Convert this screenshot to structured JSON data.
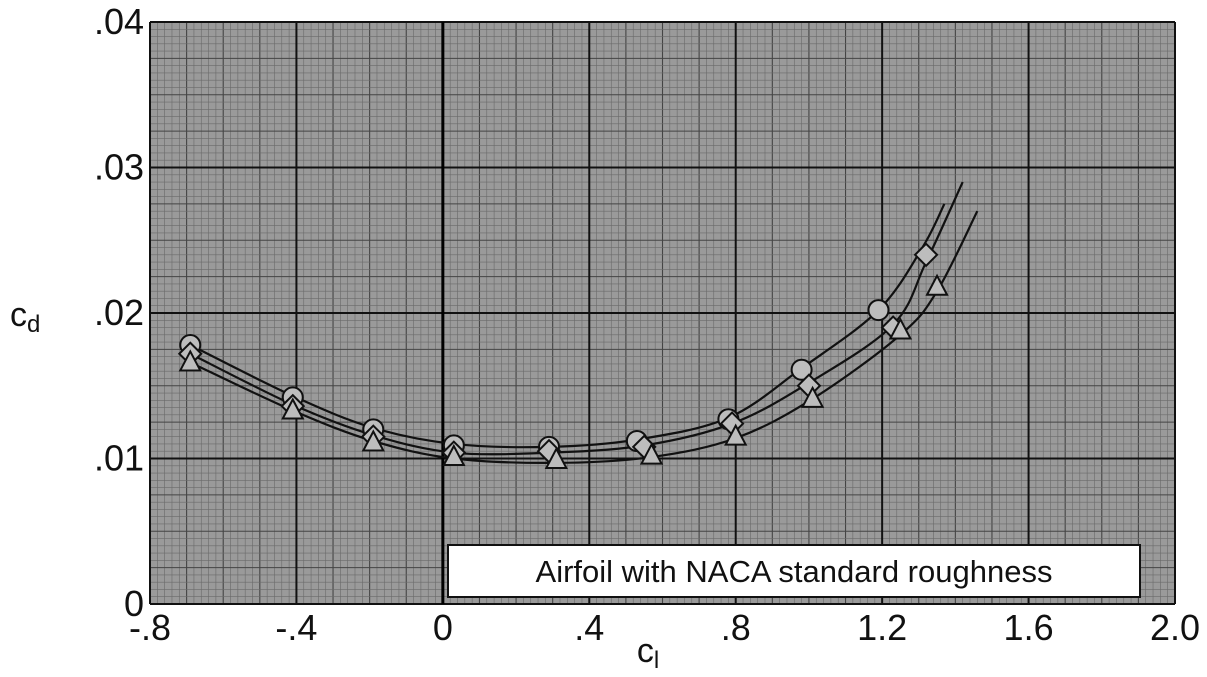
{
  "chart_data": {
    "type": "line",
    "title": "",
    "xlabel": "c",
    "xlabel_subscript": "l",
    "ylabel": "c",
    "ylabel_subscript": "d",
    "xlim": [
      -0.8,
      2.0
    ],
    "ylim": [
      0,
      0.04
    ],
    "x_ticks": [
      -0.8,
      -0.4,
      0,
      0.4,
      0.8,
      1.2,
      1.6,
      2.0
    ],
    "x_tick_labels": [
      "-.8",
      "-.4",
      "0",
      ".4",
      ".8",
      "1.2",
      "1.6",
      "2.0"
    ],
    "y_ticks": [
      0,
      0.01,
      0.02,
      0.03,
      0.04
    ],
    "y_tick_labels": [
      "0",
      ".01",
      ".02",
      ".03",
      ".04"
    ],
    "grid": true,
    "annotation": "Airfoil with NACA standard roughness",
    "series": [
      {
        "marker": "circle",
        "points": [
          [
            -0.69,
            0.0178
          ],
          [
            -0.41,
            0.0142
          ],
          [
            -0.19,
            0.012
          ],
          [
            0.03,
            0.0109
          ],
          [
            0.29,
            0.0108
          ],
          [
            0.53,
            0.0112
          ],
          [
            0.78,
            0.0127
          ],
          [
            0.98,
            0.0161
          ],
          [
            1.19,
            0.0202
          ]
        ],
        "curve": [
          [
            -0.69,
            0.0178
          ],
          [
            -0.41,
            0.0143
          ],
          [
            -0.19,
            0.0121
          ],
          [
            0.03,
            0.011
          ],
          [
            0.29,
            0.0108
          ],
          [
            0.53,
            0.0113
          ],
          [
            0.78,
            0.0128
          ],
          [
            0.98,
            0.0162
          ],
          [
            1.19,
            0.0202
          ],
          [
            1.31,
            0.0245
          ],
          [
            1.37,
            0.0275
          ]
        ]
      },
      {
        "marker": "diamond",
        "points": [
          [
            -0.69,
            0.0172
          ],
          [
            -0.41,
            0.0136
          ],
          [
            -0.19,
            0.0115
          ],
          [
            0.03,
            0.0104
          ],
          [
            0.29,
            0.0105
          ],
          [
            0.55,
            0.0108
          ],
          [
            0.79,
            0.0124
          ],
          [
            1.0,
            0.015
          ],
          [
            1.23,
            0.019
          ],
          [
            1.32,
            0.024
          ]
        ],
        "curve": [
          [
            -0.69,
            0.0172
          ],
          [
            -0.41,
            0.0137
          ],
          [
            -0.19,
            0.0116
          ],
          [
            0.03,
            0.0104
          ],
          [
            0.29,
            0.0104
          ],
          [
            0.55,
            0.0109
          ],
          [
            0.79,
            0.0124
          ],
          [
            1.0,
            0.0152
          ],
          [
            1.23,
            0.0192
          ],
          [
            1.32,
            0.0235
          ],
          [
            1.42,
            0.029
          ]
        ]
      },
      {
        "marker": "triangle",
        "points": [
          [
            -0.69,
            0.0166
          ],
          [
            -0.41,
            0.0133
          ],
          [
            -0.19,
            0.0111
          ],
          [
            0.03,
            0.0101
          ],
          [
            0.31,
            0.0099
          ],
          [
            0.57,
            0.0102
          ],
          [
            0.8,
            0.0115
          ],
          [
            1.01,
            0.0141
          ],
          [
            1.25,
            0.0188
          ],
          [
            1.35,
            0.0218
          ]
        ],
        "curve": [
          [
            -0.69,
            0.0166
          ],
          [
            -0.41,
            0.0133
          ],
          [
            -0.19,
            0.0112
          ],
          [
            0.03,
            0.01
          ],
          [
            0.31,
            0.0097
          ],
          [
            0.57,
            0.0101
          ],
          [
            0.8,
            0.0114
          ],
          [
            1.01,
            0.0141
          ],
          [
            1.25,
            0.0185
          ],
          [
            1.35,
            0.0215
          ],
          [
            1.46,
            0.027
          ]
        ]
      }
    ]
  }
}
